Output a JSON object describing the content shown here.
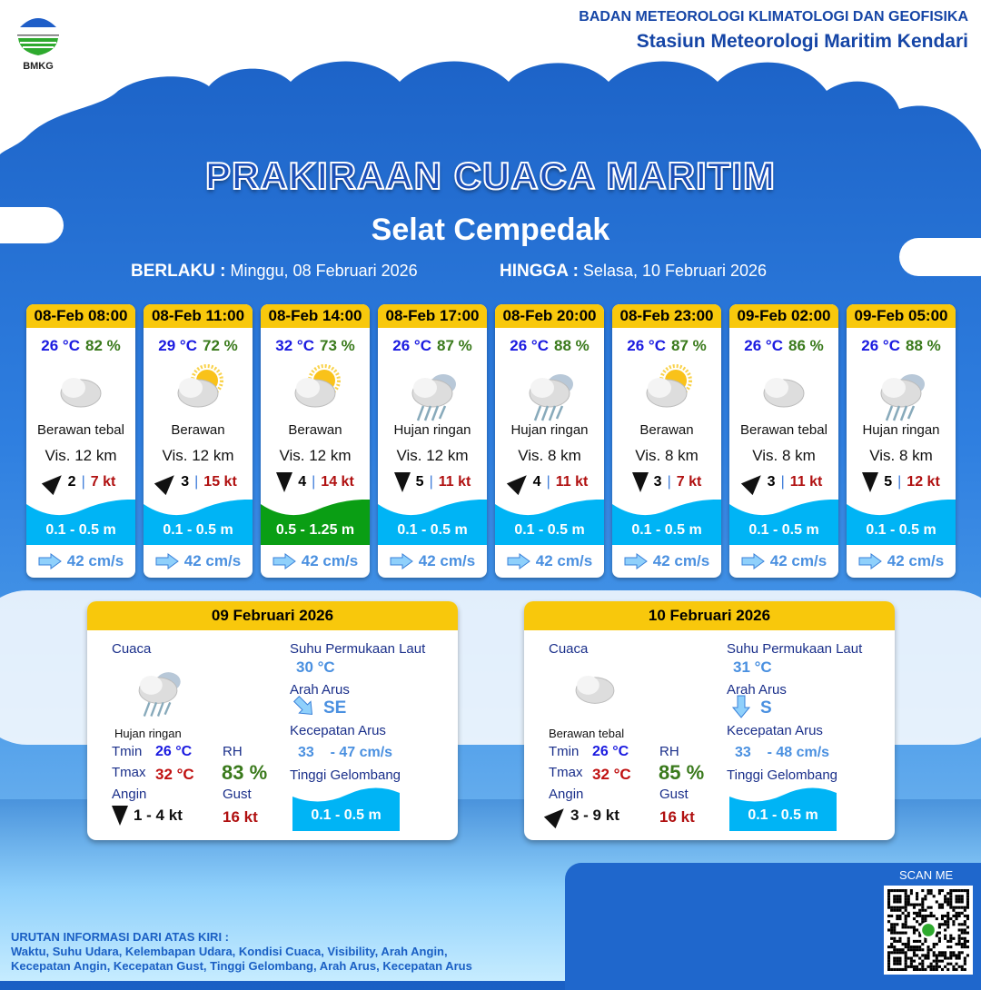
{
  "header": {
    "logo_text": "BMKG",
    "org": "BADAN METEOROLOGI KLIMATOLOGI DAN GEOFISIKA",
    "station": "Stasiun Meteorologi Maritim Kendari"
  },
  "title": "PRAKIRAAN CUACA MARITIM",
  "area": "Selat Cempedak",
  "validity": {
    "from_label": "BERLAKU :",
    "from": "Minggu, 08 Februari 2026",
    "to_label": "HINGGA :",
    "to": "Selasa, 10 Februari 2026"
  },
  "cards": [
    {
      "time": "08-Feb 08:00",
      "temp": "26 °C",
      "rh": "82 %",
      "icon": "cloudy-icon",
      "cond": "Berawan tebal",
      "vis": "Vis. 12 km",
      "wind_dir": "ne",
      "wind": "2",
      "gust": "7 kt",
      "wave": "0.1 - 0.5 m",
      "wave_color": "#00b4f5",
      "current": "42 cm/s"
    },
    {
      "time": "08-Feb 11:00",
      "temp": "29 °C",
      "rh": "72 %",
      "icon": "partly-cloudy-icon",
      "cond": "Berawan",
      "vis": "Vis. 12 km",
      "wind_dir": "ne",
      "wind": "3",
      "gust": "15 kt",
      "wave": "0.1 - 0.5 m",
      "wave_color": "#00b4f5",
      "current": "42 cm/s"
    },
    {
      "time": "08-Feb 14:00",
      "temp": "32 °C",
      "rh": "73 %",
      "icon": "partly-cloudy-icon",
      "cond": "Berawan",
      "vis": "Vis. 12 km",
      "wind_dir": "s",
      "wind": "4",
      "gust": "14 kt",
      "wave": "0.5 - 1.25 m",
      "wave_color": "#0a9e14",
      "current": "42 cm/s"
    },
    {
      "time": "08-Feb 17:00",
      "temp": "26 °C",
      "rh": "87 %",
      "icon": "light-rain-icon",
      "cond": "Hujan ringan",
      "vis": "Vis.  12 km",
      "wind_dir": "s",
      "wind": "5",
      "gust": "11 kt",
      "wave": "0.1 - 0.5 m",
      "wave_color": "#00b4f5",
      "current": "42 cm/s"
    },
    {
      "time": "08-Feb 20:00",
      "temp": "26 °C",
      "rh": "88 %",
      "icon": "light-rain-icon",
      "cond": "Hujan ringan",
      "vis": "Vis. 8 km",
      "wind_dir": "ne",
      "wind": "4",
      "gust": "11 kt",
      "wave": "0.1 - 0.5 m",
      "wave_color": "#00b4f5",
      "current": "42 cm/s"
    },
    {
      "time": "08-Feb 23:00",
      "temp": "26 °C",
      "rh": "87 %",
      "icon": "partly-cloudy-icon",
      "cond": "Berawan",
      "vis": "Vis. 8 km",
      "wind_dir": "s",
      "wind": "3",
      "gust": "7 kt",
      "wave": "0.1 - 0.5 m",
      "wave_color": "#00b4f5",
      "current": "42 cm/s"
    },
    {
      "time": "09-Feb 02:00",
      "temp": "26 °C",
      "rh": "86 %",
      "icon": "cloudy-icon",
      "cond": "Berawan tebal",
      "vis": "Vis. 8 km",
      "wind_dir": "ne",
      "wind": "3",
      "gust": "11 kt",
      "wave": "0.1 - 0.5 m",
      "wave_color": "#00b4f5",
      "current": "42 cm/s"
    },
    {
      "time": "09-Feb 05:00",
      "temp": "26 °C",
      "rh": "88 %",
      "icon": "light-rain-icon",
      "cond": "Hujan ringan",
      "vis": "Vis. 8 km",
      "wind_dir": "s",
      "wind": "5",
      "gust": "12 kt",
      "wave": "0.1 - 0.5 m",
      "wave_color": "#00b4f5",
      "current": "42 cm/s"
    }
  ],
  "labels": {
    "weather": "Cuaca",
    "tmin": "Tmin",
    "tmax": "Tmax",
    "rh": "RH",
    "wind": "Angin",
    "gust": "Gust",
    "sst": "Suhu Permukaan Laut",
    "cur_dir": "Arah Arus",
    "cur_speed": "Kecepatan Arus",
    "wave": "Tinggi Gelombang"
  },
  "daily": [
    {
      "date": "09 Februari 2026",
      "icon": "light-rain-icon",
      "cond": "Hujan ringan",
      "tmin": "26 °C",
      "tmax": "32 °C",
      "rh": "83 %",
      "wind_dir": "s",
      "wind": "1  - 4 kt",
      "gust": "16 kt",
      "sst": "30 °C",
      "cur_dir": "SE",
      "cur_speed": "33    - 47 cm/s",
      "wave": "0.1 - 0.5 m"
    },
    {
      "date": "10 Februari 2026",
      "icon": "cloudy-icon",
      "cond": "Berawan tebal",
      "tmin": "26 °C",
      "tmax": "32 °C",
      "rh": "85 %",
      "wind_dir": "ne",
      "wind": "3  - 9 kt",
      "gust": "16 kt",
      "sst": "31 °C",
      "cur_dir": "S",
      "cur_speed": "33    - 48 cm/s",
      "wave": "0.1 - 0.5 m"
    }
  ],
  "footer": {
    "heading": "URUTAN INFORMASI DARI ATAS KIRI :",
    "line1": "Waktu, Suhu Udara, Kelembapan Udara, Kondisi Cuaca, Visibility, Arah Angin,",
    "line2": "Kecepatan Angin, Kecepatan Gust, Tinggi Gelombang, Arah Arus, Kecepatan Arus",
    "scan": "SCAN ME"
  }
}
